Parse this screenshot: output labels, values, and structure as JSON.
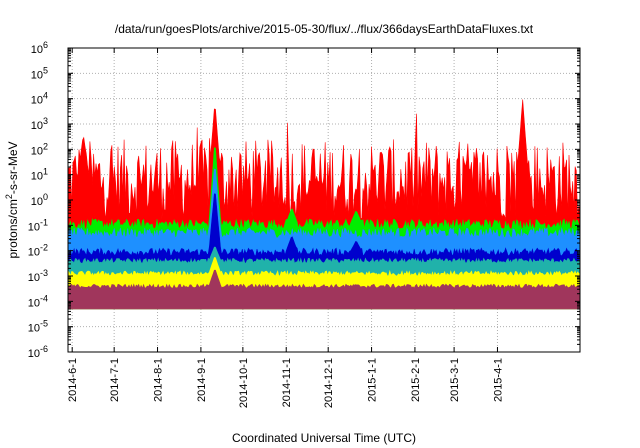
{
  "chart_data": {
    "type": "area",
    "title": "/data/run/goesPlots/archive/2015-05-30/flux/../flux/366daysEarthDataFluxes.txt",
    "xlabel": "Coordinated Universal Time (UTC)",
    "ylabel": "protons/cm²-s-sr-MeV",
    "ylabel_parts": {
      "main": "protons/cm",
      "sup": "2",
      "rest": "-s-sr-MeV"
    },
    "yscale": "log",
    "ylim_exp": [
      -6,
      6
    ],
    "y_ticks": [
      {
        "base": "10",
        "exp": "-6"
      },
      {
        "base": "10",
        "exp": "-5"
      },
      {
        "base": "10",
        "exp": "-4"
      },
      {
        "base": "10",
        "exp": "-3"
      },
      {
        "base": "10",
        "exp": "-2"
      },
      {
        "base": "10",
        "exp": "-1"
      },
      {
        "base": "10",
        "exp": "0"
      },
      {
        "base": "10",
        "exp": "1"
      },
      {
        "base": "10",
        "exp": "2"
      },
      {
        "base": "10",
        "exp": "3"
      },
      {
        "base": "10",
        "exp": "4"
      },
      {
        "base": "10",
        "exp": "5"
      },
      {
        "base": "10",
        "exp": "6"
      }
    ],
    "x_range": [
      "2014-05-29",
      "2015-05-30"
    ],
    "x_ticks": [
      "2014-6-1",
      "2014-7-1",
      "2014-8-1",
      "2014-9-1",
      "2014-10-1",
      "2014-11-1",
      "2014-12-1",
      "2015-1-1",
      "2015-2-1",
      "2015-3-1",
      "2015-4-1"
    ],
    "grid": true,
    "series": [
      {
        "color": "#ff0000",
        "base_log": 0.8,
        "spread": 1.6,
        "peaks": [
          {
            "x": "2014-9-11",
            "log": 3.9
          },
          {
            "x": "2015-4-19",
            "log": 4.0
          },
          {
            "x": "2014-6-9",
            "log": 2.6
          }
        ]
      },
      {
        "color": "#00ee00",
        "base_log": -0.95,
        "spread": 0.2,
        "peaks": [
          {
            "x": "2014-9-11",
            "log": 2.4
          },
          {
            "x": "2014-11-5",
            "log": -0.3
          },
          {
            "x": "2014-12-21",
            "log": -0.4
          }
        ]
      },
      {
        "color": "#1e90ff",
        "base_log": -1.3,
        "spread": 0.2,
        "peaks": [
          {
            "x": "2014-9-11",
            "log": 1.5
          }
        ]
      },
      {
        "color": "#0000cd",
        "base_log": -2.05,
        "spread": 0.15,
        "peaks": [
          {
            "x": "2014-9-11",
            "log": 0.5
          },
          {
            "x": "2014-11-5",
            "log": -1.4
          },
          {
            "x": "2014-12-21",
            "log": -1.6
          }
        ]
      },
      {
        "color": "#20b2aa",
        "base_log": -2.4,
        "spread": 0.1,
        "peaks": [
          {
            "x": "2014-9-11",
            "log": -1.8
          }
        ]
      },
      {
        "color": "#ffff00",
        "base_log": -2.9,
        "spread": 0.1,
        "peaks": [
          {
            "x": "2014-9-11",
            "log": -2.2
          }
        ]
      },
      {
        "color": "#a0365c",
        "base_log": -3.4,
        "spread": 0.08,
        "peaks": [
          {
            "x": "2014-9-11",
            "log": -2.7
          }
        ]
      }
    ],
    "floor_log": -4.3
  }
}
